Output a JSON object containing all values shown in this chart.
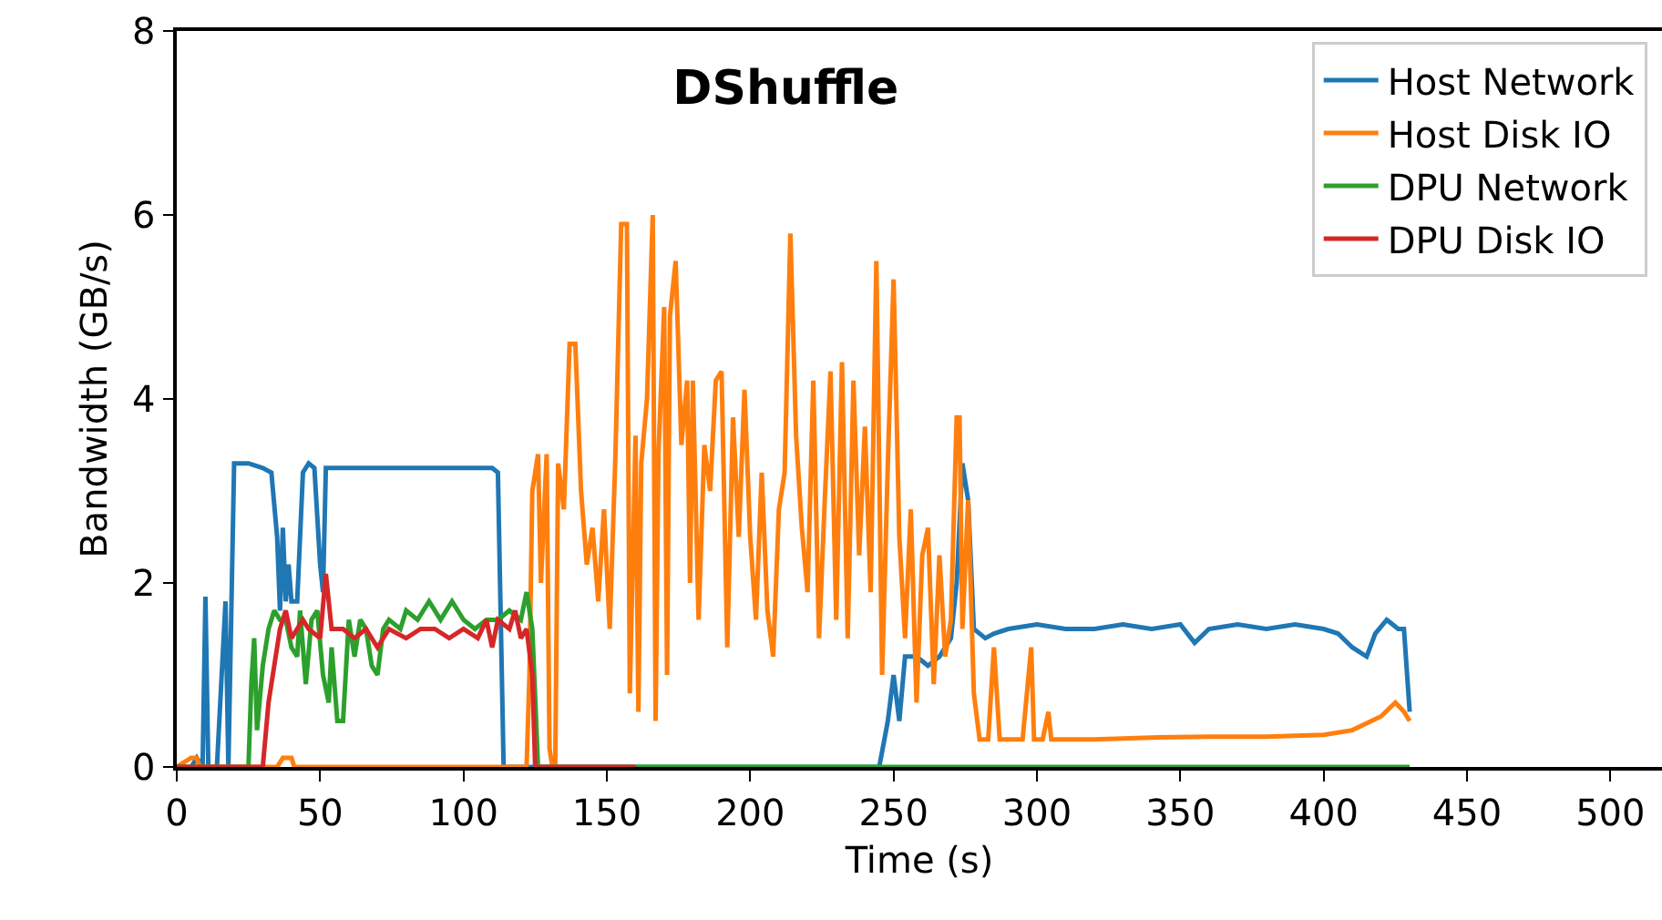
{
  "chart_data": {
    "type": "line",
    "title": "DShuffle",
    "xlabel": "Time (s)",
    "ylabel": "Bandwidth (GB/s)",
    "xlim": [
      0,
      518
    ],
    "ylim": [
      0,
      8
    ],
    "xticks": [
      0,
      50,
      100,
      150,
      200,
      250,
      300,
      350,
      400,
      450,
      500
    ],
    "yticks": [
      0,
      2,
      4,
      6,
      8
    ],
    "grid": false,
    "legend": "top right",
    "marker": "none",
    "line_style": "solid",
    "series": [
      {
        "name": "Host Network",
        "color": "#1f77b4",
        "x": [
          0,
          5,
          7,
          9,
          10,
          11,
          14,
          17,
          18,
          20,
          25,
          30,
          33,
          35,
          36,
          37,
          38,
          39,
          40,
          42,
          44,
          46,
          48,
          50,
          51,
          52,
          55,
          70,
          90,
          110,
          112,
          114,
          150,
          200,
          245,
          248,
          250,
          252,
          254,
          258,
          262,
          266,
          270,
          272,
          274,
          276,
          278,
          282,
          285,
          290,
          300,
          310,
          320,
          330,
          340,
          350,
          355,
          360,
          370,
          380,
          390,
          400,
          405,
          410,
          415,
          418,
          422,
          426,
          428,
          430
        ],
        "values": [
          0,
          0,
          0.1,
          0,
          1.85,
          0,
          0,
          1.8,
          0,
          3.3,
          3.3,
          3.25,
          3.2,
          2.5,
          1.7,
          2.6,
          1.8,
          2.2,
          1.8,
          1.8,
          3.2,
          3.3,
          3.25,
          2.2,
          1.9,
          3.25,
          3.25,
          3.25,
          3.25,
          3.25,
          3.2,
          0,
          0,
          0,
          0,
          0.5,
          1.0,
          0.5,
          1.2,
          1.2,
          1.1,
          1.2,
          1.4,
          2.0,
          3.3,
          2.9,
          1.5,
          1.4,
          1.45,
          1.5,
          1.55,
          1.5,
          1.5,
          1.55,
          1.5,
          1.55,
          1.35,
          1.5,
          1.55,
          1.5,
          1.55,
          1.5,
          1.45,
          1.3,
          1.2,
          1.45,
          1.6,
          1.5,
          1.5,
          0.6
        ]
      },
      {
        "name": "Host Disk IO",
        "color": "#ff7f0e",
        "x": [
          0,
          5,
          7,
          8,
          35,
          37,
          40,
          41,
          122,
          123,
          124,
          126,
          127,
          129,
          130,
          131,
          132,
          133,
          135,
          137,
          139,
          141,
          143,
          145,
          147,
          149,
          151,
          153,
          155,
          157,
          158,
          160,
          161,
          162,
          164,
          166,
          167,
          168,
          170,
          171,
          172,
          174,
          176,
          178,
          179,
          180,
          182,
          184,
          186,
          188,
          190,
          192,
          194,
          196,
          198,
          200,
          202,
          204,
          206,
          208,
          210,
          212,
          214,
          216,
          218,
          220,
          222,
          224,
          226,
          228,
          230,
          232,
          234,
          236,
          238,
          240,
          242,
          244,
          246,
          248,
          250,
          252,
          254,
          256,
          258,
          260,
          262,
          264,
          266,
          268,
          270,
          272,
          273,
          274,
          276,
          278,
          280,
          283,
          285,
          287,
          295,
          298,
          299,
          302,
          304,
          305,
          320,
          340,
          360,
          380,
          400,
          410,
          420,
          425,
          428,
          430
        ],
        "values": [
          0,
          0.1,
          0.1,
          0,
          0,
          0.1,
          0.1,
          0,
          0,
          1.0,
          3.0,
          3.4,
          2.0,
          3.4,
          0.2,
          0,
          0,
          3.3,
          2.8,
          4.6,
          4.6,
          3.0,
          2.2,
          2.6,
          1.8,
          2.8,
          1.5,
          3.4,
          5.9,
          5.9,
          0.8,
          3.6,
          0.6,
          3.3,
          4.0,
          6.0,
          0.5,
          3.4,
          5.0,
          1.0,
          4.9,
          5.5,
          3.5,
          4.2,
          2.0,
          4.2,
          1.6,
          3.5,
          3.0,
          4.2,
          4.3,
          1.3,
          3.8,
          2.5,
          4.1,
          2.5,
          1.6,
          3.2,
          1.7,
          1.2,
          2.8,
          3.2,
          5.8,
          3.6,
          2.6,
          1.9,
          4.2,
          1.4,
          2.9,
          4.3,
          1.6,
          4.4,
          1.4,
          4.2,
          2.3,
          3.7,
          1.9,
          5.5,
          1.0,
          3.3,
          5.3,
          2.5,
          1.4,
          2.8,
          0.7,
          2.3,
          2.6,
          0.9,
          2.3,
          1.2,
          1.6,
          3.8,
          3.8,
          1.5,
          2.9,
          0.8,
          0.3,
          0.3,
          1.3,
          0.3,
          0.3,
          1.3,
          0.3,
          0.3,
          0.6,
          0.3,
          0.3,
          0.32,
          0.33,
          0.33,
          0.35,
          0.4,
          0.55,
          0.7,
          0.6,
          0.5
        ]
      },
      {
        "name": "DPU Network",
        "color": "#2ca02c",
        "x": [
          0,
          25,
          26,
          27,
          28,
          30,
          32,
          34,
          36,
          38,
          40,
          42,
          43,
          45,
          47,
          49,
          51,
          53,
          54,
          56,
          58,
          60,
          62,
          64,
          66,
          68,
          70,
          72,
          74,
          78,
          80,
          84,
          88,
          92,
          96,
          100,
          104,
          108,
          112,
          116,
          120,
          122,
          124,
          126,
          430
        ],
        "values": [
          0,
          0,
          0.9,
          1.4,
          0.4,
          1.1,
          1.5,
          1.7,
          1.6,
          1.6,
          1.3,
          1.2,
          1.7,
          0.9,
          1.6,
          1.7,
          1.0,
          0.7,
          1.3,
          0.5,
          0.5,
          1.6,
          1.2,
          1.6,
          1.5,
          1.1,
          1.0,
          1.5,
          1.6,
          1.5,
          1.7,
          1.6,
          1.8,
          1.6,
          1.8,
          1.6,
          1.5,
          1.6,
          1.6,
          1.7,
          1.6,
          1.9,
          1.5,
          0,
          0
        ]
      },
      {
        "name": "DPU Disk IO",
        "color": "#d62728",
        "x": [
          0,
          30,
          32,
          34,
          36,
          38,
          40,
          44,
          46,
          50,
          52,
          54,
          58,
          62,
          66,
          70,
          74,
          80,
          85,
          90,
          95,
          100,
          105,
          108,
          110,
          112,
          116,
          118,
          120,
          122,
          124,
          125,
          160
        ],
        "values": [
          0,
          0,
          0.7,
          1.1,
          1.5,
          1.7,
          1.4,
          1.6,
          1.5,
          1.4,
          2.1,
          1.5,
          1.5,
          1.4,
          1.5,
          1.3,
          1.5,
          1.4,
          1.5,
          1.5,
          1.4,
          1.5,
          1.4,
          1.6,
          1.3,
          1.6,
          1.5,
          1.7,
          1.4,
          1.5,
          1.0,
          0,
          0
        ]
      }
    ]
  }
}
